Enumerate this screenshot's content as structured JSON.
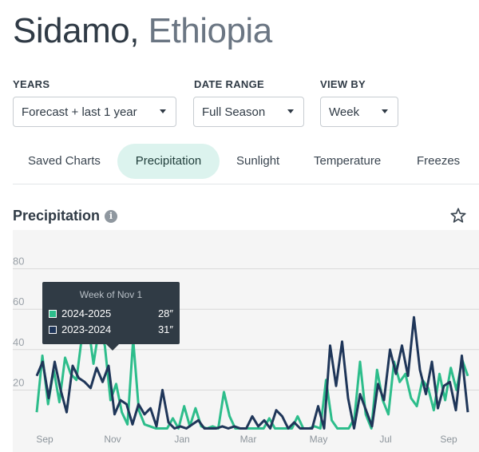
{
  "header": {
    "city": "Sidamo,",
    "country": "Ethiopia"
  },
  "controls": {
    "years": {
      "label": "YEARS",
      "value": "Forecast + last 1 year"
    },
    "date_range": {
      "label": "DATE RANGE",
      "value": "Full Season"
    },
    "view_by": {
      "label": "VIEW BY",
      "value": "Week"
    }
  },
  "tabs": [
    {
      "label": "Saved Charts",
      "active": false
    },
    {
      "label": "Precipitation",
      "active": true
    },
    {
      "label": "Sunlight",
      "active": false
    },
    {
      "label": "Temperature",
      "active": false
    },
    {
      "label": "Freezes",
      "active": false
    }
  ],
  "section": {
    "title": "Precipitation",
    "info_icon": "info-icon",
    "star_icon": "star-icon"
  },
  "tooltip": {
    "title": "Week of Nov 1",
    "rows": [
      {
        "name": "2024-2025",
        "value": "28″",
        "color": "#2dbd8b"
      },
      {
        "name": "2023-2024",
        "value": "31″",
        "color": "#1f3659"
      }
    ]
  },
  "chart_data": {
    "type": "line",
    "x_labels": [
      "Sep",
      "Nov",
      "Jan",
      "Mar",
      "May",
      "Jul",
      "Sep"
    ],
    "y_ticks": [
      20,
      40,
      60,
      80
    ],
    "ylim": [
      0,
      100
    ],
    "grid": true,
    "series": [
      {
        "name": "2024-2025",
        "color": "#2dbd8b",
        "values": [
          9,
          37,
          13,
          30,
          14,
          36,
          28,
          25,
          47,
          54,
          33,
          51,
          42,
          15,
          23,
          9,
          3,
          45,
          10,
          3,
          2,
          1,
          1,
          1,
          6,
          1,
          12,
          2,
          11,
          2,
          1,
          2,
          1,
          19,
          7,
          1,
          1,
          1,
          1,
          1,
          1,
          6,
          1,
          1,
          1,
          1,
          7,
          1,
          1,
          2,
          1,
          25,
          5,
          1,
          1,
          1,
          6,
          34,
          8,
          1,
          30,
          15,
          8,
          34,
          24,
          28,
          16,
          12,
          25,
          21,
          10,
          28,
          15,
          31,
          20,
          35,
          27
        ]
      },
      {
        "name": "2023-2024",
        "color": "#1f3659",
        "values": [
          27,
          34,
          16,
          34,
          20,
          9,
          32,
          26,
          24,
          21,
          31,
          24,
          32,
          8,
          15,
          13,
          3,
          13,
          8,
          11,
          2,
          20,
          4,
          1,
          2,
          1,
          3,
          5,
          1,
          1,
          1,
          2,
          1,
          2,
          1,
          1,
          7,
          2,
          5,
          1,
          10,
          7,
          1,
          4,
          1,
          1,
          1,
          12,
          1,
          42,
          22,
          44,
          16,
          1,
          18,
          10,
          2,
          23,
          15,
          40,
          28,
          42,
          27,
          56,
          30,
          18,
          34,
          11,
          22,
          24,
          10,
          37,
          9
        ]
      }
    ]
  }
}
